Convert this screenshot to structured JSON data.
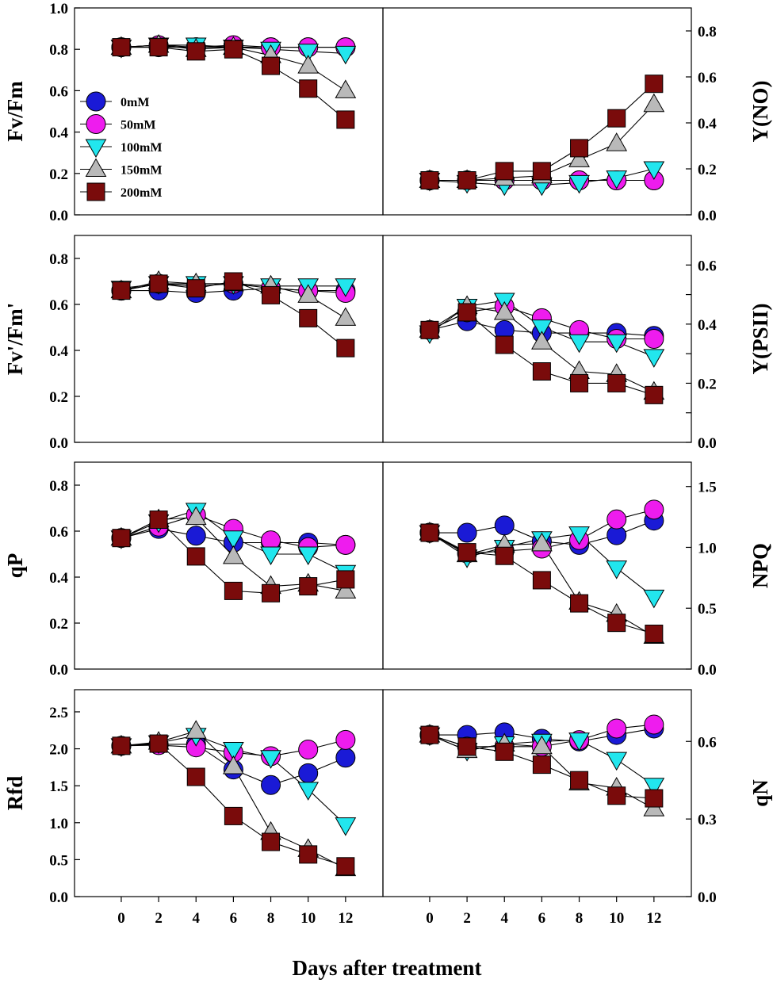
{
  "figure": {
    "xlabel": "Days after treatment"
  },
  "legend": {
    "entries": [
      {
        "label": "0mM",
        "marker": "circle",
        "color": "#1a1ad6"
      },
      {
        "label": "50mM",
        "marker": "circle",
        "color": "#ee1cee"
      },
      {
        "label": "100mM",
        "marker": "triangle-down",
        "color": "#22e6ee"
      },
      {
        "label": "150mM",
        "marker": "triangle-up",
        "color": "#b9b9b9"
      },
      {
        "label": "200mM",
        "marker": "square",
        "color": "#7a0b0b"
      }
    ]
  },
  "chart_data": [
    {
      "id": "fvfm",
      "type": "line",
      "ylabel": "Fv/Fm",
      "y_axis_side": "left",
      "x": [
        0,
        2,
        4,
        6,
        8,
        10,
        12
      ],
      "xlim": [
        -2.5,
        14
      ],
      "ylim": [
        0,
        1.0
      ],
      "yticks": [
        "0.0",
        "0.2",
        "0.4",
        "0.6",
        "0.8",
        "1.0"
      ],
      "show_xticks": false,
      "series": [
        {
          "name": "0mM",
          "values": [
            0.81,
            0.81,
            0.81,
            0.81,
            0.81,
            0.81,
            0.81
          ]
        },
        {
          "name": "50mM",
          "values": [
            0.81,
            0.82,
            0.81,
            0.82,
            0.81,
            0.81,
            0.81
          ]
        },
        {
          "name": "100mM",
          "values": [
            0.81,
            0.82,
            0.82,
            0.81,
            0.8,
            0.79,
            0.78
          ]
        },
        {
          "name": "150mM",
          "values": [
            0.81,
            0.82,
            0.8,
            0.81,
            0.77,
            0.72,
            0.6
          ]
        },
        {
          "name": "200mM",
          "values": [
            0.81,
            0.81,
            0.79,
            0.8,
            0.72,
            0.61,
            0.46
          ]
        }
      ]
    },
    {
      "id": "yno",
      "type": "line",
      "ylabel": "Y(NO)",
      "y_axis_side": "right",
      "x": [
        0,
        2,
        4,
        6,
        8,
        10,
        12
      ],
      "xlim": [
        -2.5,
        14
      ],
      "ylim": [
        0,
        0.9
      ],
      "yticks": [
        "0.0",
        "0.2",
        "0.4",
        "0.6",
        "0.8"
      ],
      "show_xticks": false,
      "series": [
        {
          "name": "0mM",
          "values": [
            0.15,
            0.15,
            0.15,
            0.15,
            0.15,
            0.15,
            0.15
          ]
        },
        {
          "name": "50mM",
          "values": [
            0.15,
            0.15,
            0.15,
            0.15,
            0.15,
            0.15,
            0.15
          ]
        },
        {
          "name": "100mM",
          "values": [
            0.15,
            0.14,
            0.13,
            0.13,
            0.14,
            0.16,
            0.2
          ]
        },
        {
          "name": "150mM",
          "values": [
            0.15,
            0.15,
            0.16,
            0.17,
            0.24,
            0.31,
            0.48
          ]
        },
        {
          "name": "200mM",
          "values": [
            0.15,
            0.15,
            0.19,
            0.19,
            0.29,
            0.42,
            0.57
          ]
        }
      ]
    },
    {
      "id": "fvfmprime",
      "type": "line",
      "ylabel": "Fv'/Fm'",
      "y_axis_side": "left",
      "x": [
        0,
        2,
        4,
        6,
        8,
        10,
        12
      ],
      "xlim": [
        -2.5,
        14
      ],
      "ylim": [
        0,
        0.9
      ],
      "yticks": [
        "0.0",
        "0.2",
        "0.4",
        "0.6",
        "0.8"
      ],
      "show_xticks": false,
      "series": [
        {
          "name": "0mM",
          "values": [
            0.66,
            0.66,
            0.65,
            0.66,
            0.67,
            0.66,
            0.66
          ]
        },
        {
          "name": "50mM",
          "values": [
            0.66,
            0.69,
            0.68,
            0.69,
            0.67,
            0.66,
            0.65
          ]
        },
        {
          "name": "100mM",
          "values": [
            0.67,
            0.69,
            0.69,
            0.69,
            0.68,
            0.68,
            0.68
          ]
        },
        {
          "name": "150mM",
          "values": [
            0.66,
            0.7,
            0.69,
            0.69,
            0.68,
            0.64,
            0.54
          ]
        },
        {
          "name": "200mM",
          "values": [
            0.66,
            0.69,
            0.67,
            0.7,
            0.64,
            0.54,
            0.41
          ]
        }
      ]
    },
    {
      "id": "ypsii",
      "type": "line",
      "ylabel": "Y(PSII)",
      "y_axis_side": "right",
      "x": [
        0,
        2,
        4,
        6,
        8,
        10,
        12
      ],
      "xlim": [
        -2.5,
        14
      ],
      "ylim": [
        0,
        0.7
      ],
      "yticks": [
        "0.0",
        "0.1",
        "0.2",
        "0.3",
        "0.4",
        "0.5",
        "0.6"
      ],
      "yticklabels": [
        "0.0",
        "",
        "0.2",
        "",
        "0.4",
        "",
        "0.6"
      ],
      "show_xticks": false,
      "series": [
        {
          "name": "0mM",
          "values": [
            0.38,
            0.41,
            0.38,
            0.37,
            0.37,
            0.37,
            0.36
          ]
        },
        {
          "name": "50mM",
          "values": [
            0.38,
            0.44,
            0.46,
            0.42,
            0.38,
            0.35,
            0.35
          ]
        },
        {
          "name": "100mM",
          "values": [
            0.37,
            0.46,
            0.48,
            0.39,
            0.34,
            0.34,
            0.29
          ]
        },
        {
          "name": "150mM",
          "values": [
            0.38,
            0.46,
            0.44,
            0.34,
            0.24,
            0.23,
            0.17
          ]
        },
        {
          "name": "200mM",
          "values": [
            0.38,
            0.44,
            0.33,
            0.24,
            0.2,
            0.2,
            0.16
          ]
        }
      ]
    },
    {
      "id": "qp",
      "type": "line",
      "ylabel": "qP",
      "y_axis_side": "left",
      "x": [
        0,
        2,
        4,
        6,
        8,
        10,
        12
      ],
      "xlim": [
        -2.5,
        14
      ],
      "ylim": [
        0,
        0.9
      ],
      "yticks": [
        "0.0",
        "0.2",
        "0.4",
        "0.6",
        "0.8"
      ],
      "show_xticks": false,
      "series": [
        {
          "name": "0mM",
          "values": [
            0.57,
            0.61,
            0.58,
            0.55,
            0.55,
            0.55,
            0.54
          ]
        },
        {
          "name": "50mM",
          "values": [
            0.57,
            0.62,
            0.67,
            0.61,
            0.56,
            0.53,
            0.54
          ]
        },
        {
          "name": "100mM",
          "values": [
            0.57,
            0.64,
            0.69,
            0.57,
            0.5,
            0.5,
            0.42
          ]
        },
        {
          "name": "150mM",
          "values": [
            0.57,
            0.65,
            0.66,
            0.49,
            0.36,
            0.37,
            0.34
          ]
        },
        {
          "name": "200mM",
          "values": [
            0.57,
            0.65,
            0.49,
            0.34,
            0.33,
            0.36,
            0.39
          ]
        }
      ]
    },
    {
      "id": "npq",
      "type": "line",
      "ylabel": "NPQ",
      "y_axis_side": "right",
      "x": [
        0,
        2,
        4,
        6,
        8,
        10,
        12
      ],
      "xlim": [
        -2.5,
        14
      ],
      "ylim": [
        0,
        1.7
      ],
      "yticks": [
        "0.0",
        "0.5",
        "1.0",
        "1.5"
      ],
      "show_xticks": false,
      "series": [
        {
          "name": "0mM",
          "values": [
            1.12,
            1.12,
            1.18,
            1.05,
            1.02,
            1.1,
            1.22
          ]
        },
        {
          "name": "50mM",
          "values": [
            1.12,
            0.95,
            0.97,
            0.99,
            1.06,
            1.23,
            1.31
          ]
        },
        {
          "name": "100mM",
          "values": [
            1.12,
            0.92,
            1.0,
            1.07,
            1.11,
            0.83,
            0.59
          ]
        },
        {
          "name": "150mM",
          "values": [
            1.12,
            0.94,
            1.02,
            1.03,
            0.55,
            0.45,
            0.27
          ]
        },
        {
          "name": "200mM",
          "values": [
            1.12,
            0.96,
            0.93,
            0.73,
            0.54,
            0.38,
            0.29
          ]
        }
      ]
    },
    {
      "id": "rfd",
      "type": "line",
      "ylabel": "Rfd",
      "y_axis_side": "left",
      "x": [
        0,
        2,
        4,
        6,
        8,
        10,
        12
      ],
      "xlim": [
        -2.5,
        14
      ],
      "ylim": [
        0,
        2.8
      ],
      "yticks": [
        "0.0",
        "0.5",
        "1.0",
        "1.5",
        "2.0",
        "2.5"
      ],
      "show_xticks": true,
      "series": [
        {
          "name": "0mM",
          "values": [
            2.04,
            2.06,
            2.06,
            1.72,
            1.51,
            1.67,
            1.88
          ]
        },
        {
          "name": "50mM",
          "values": [
            2.04,
            2.05,
            2.02,
            1.95,
            1.9,
            1.99,
            2.12
          ]
        },
        {
          "name": "100mM",
          "values": [
            2.04,
            2.08,
            2.18,
            1.99,
            1.88,
            1.45,
            0.97
          ]
        },
        {
          "name": "150mM",
          "values": [
            2.04,
            2.09,
            2.24,
            1.76,
            0.87,
            0.64,
            0.38
          ]
        },
        {
          "name": "200mM",
          "values": [
            2.04,
            2.07,
            1.62,
            1.09,
            0.74,
            0.57,
            0.41
          ]
        }
      ]
    },
    {
      "id": "qn",
      "type": "line",
      "ylabel": "qN",
      "y_axis_side": "right",
      "x": [
        0,
        2,
        4,
        6,
        8,
        10,
        12
      ],
      "xlim": [
        -2.5,
        14
      ],
      "ylim": [
        0,
        0.8
      ],
      "yticks": [
        "0.0",
        "0.3",
        "0.6"
      ],
      "show_xticks": true,
      "series": [
        {
          "name": "0mM",
          "values": [
            0.625,
            0.625,
            0.635,
            0.61,
            0.6,
            0.625,
            0.65
          ]
        },
        {
          "name": "50mM",
          "values": [
            0.625,
            0.58,
            0.58,
            0.58,
            0.605,
            0.65,
            0.665
          ]
        },
        {
          "name": "100mM",
          "values": [
            0.625,
            0.565,
            0.59,
            0.6,
            0.605,
            0.53,
            0.43
          ]
        },
        {
          "name": "150mM",
          "values": [
            0.625,
            0.565,
            0.59,
            0.58,
            0.44,
            0.42,
            0.34
          ]
        },
        {
          "name": "200mM",
          "values": [
            0.625,
            0.58,
            0.56,
            0.51,
            0.45,
            0.39,
            0.38
          ]
        }
      ]
    }
  ]
}
